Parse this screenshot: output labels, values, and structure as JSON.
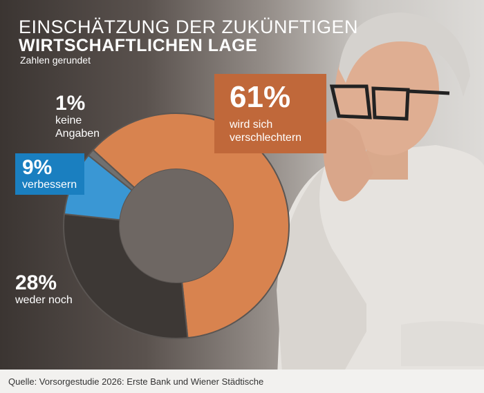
{
  "title_line1": "EINSCHÄTZUNG DER ZUKÜNFTIGEN",
  "title_line2": "WIRTSCHAFTLICHEN LAGE",
  "subtitle": "Zahlen gerundet",
  "source": "Quelle: Vorsorgestudie 2026: Erste Bank und Wiener Städtische",
  "chart_data": {
    "type": "pie",
    "donut": true,
    "slices": [
      {
        "label": "wird sich verschlechtern",
        "value": 61,
        "display": "61%",
        "color": "#d8834f"
      },
      {
        "label": "weder noch",
        "value": 28,
        "display": "28%",
        "color": "#3d3835"
      },
      {
        "label": "verbessern",
        "value": 9,
        "display": "9%",
        "color": "#3a97d4"
      },
      {
        "label": "keine Angaben",
        "value": 1,
        "display": "1%",
        "color": "#707070"
      }
    ]
  },
  "labels": {
    "keine_angaben_line1": "keine",
    "keine_angaben_line2": "Angaben",
    "verschlechtern_line1": "wird sich",
    "verschlechtern_line2": "verschlechtern"
  }
}
